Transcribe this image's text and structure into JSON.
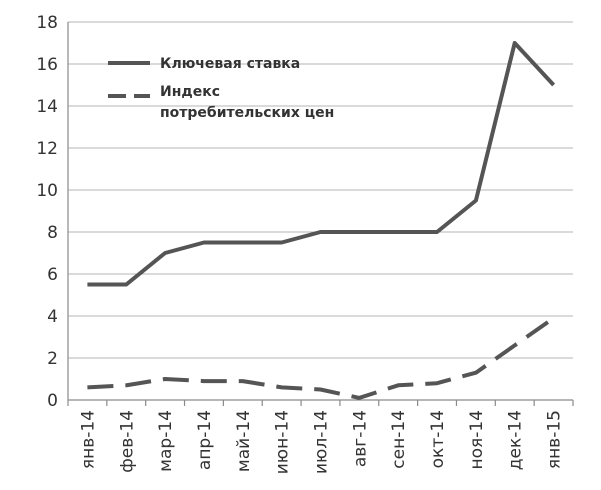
{
  "chart_data": {
    "type": "line",
    "categories": [
      "янв-14",
      "фев-14",
      "мар-14",
      "апр-14",
      "май-14",
      "июн-14",
      "июл-14",
      "авг-14",
      "сен-14",
      "окт-14",
      "ноя-14",
      "дек-14",
      "янв-15"
    ],
    "series": [
      {
        "name": "Ключевая ставка",
        "values": [
          5.5,
          5.5,
          7.0,
          7.5,
          7.5,
          7.5,
          8.0,
          8.0,
          8.0,
          8.0,
          9.5,
          17.0,
          15.0
        ],
        "color": "#555555",
        "dash": "solid"
      },
      {
        "name_lines": [
          "Индекс",
          "потребительских цен"
        ],
        "values": [
          0.6,
          0.7,
          1.0,
          0.9,
          0.9,
          0.6,
          0.5,
          0.1,
          0.7,
          0.8,
          1.3,
          2.6,
          3.9
        ],
        "color": "#555555",
        "dash": "dashed"
      }
    ],
    "ylim": [
      0,
      18
    ],
    "yticks": [
      "0",
      "2",
      "4",
      "6",
      "8",
      "10",
      "12",
      "14",
      "16",
      "18"
    ],
    "grid": true,
    "legend_position": "top-left"
  }
}
